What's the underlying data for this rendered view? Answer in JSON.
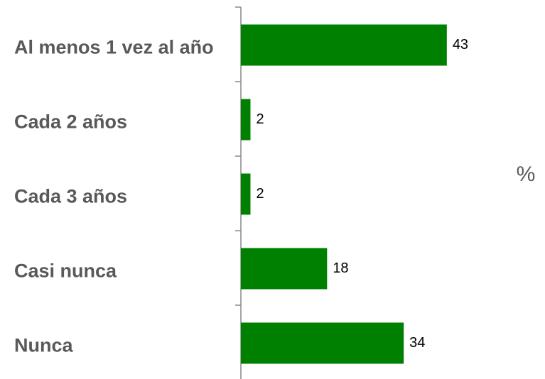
{
  "chart_data": {
    "type": "barh",
    "xlabel": "%",
    "categories": [
      "Al menos 1 vez al año",
      "Cada 2 años",
      "Cada 3 años",
      "Casi nunca",
      "Nunca"
    ],
    "values": [
      43,
      2,
      2,
      18,
      34
    ],
    "color": "#008000"
  }
}
